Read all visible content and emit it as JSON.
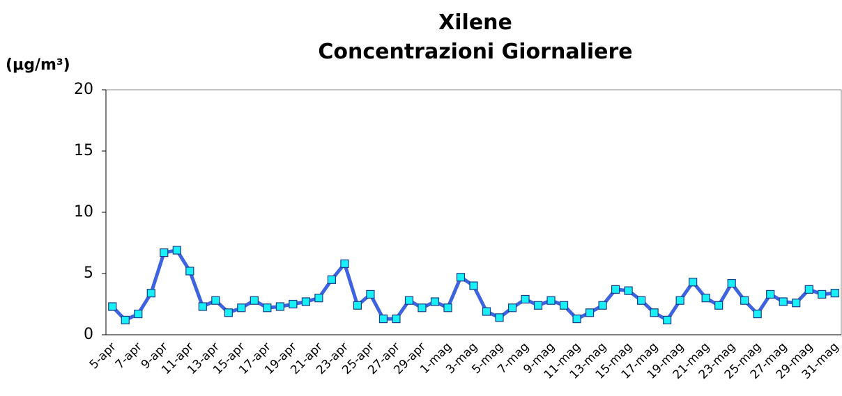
{
  "chart_data": {
    "type": "line",
    "title": [
      "Xilene",
      "Concentrazioni Giornaliere"
    ],
    "y_label": "(μg/m³)",
    "categories": [
      "5-apr",
      null,
      "7-apr",
      null,
      "9-apr",
      null,
      "11-apr",
      null,
      "13-apr",
      null,
      "15-apr",
      null,
      "17-apr",
      null,
      "19-apr",
      null,
      "21-apr",
      null,
      "23-apr",
      null,
      "25-apr",
      null,
      "27-apr",
      null,
      "29-apr",
      null,
      "1-mag",
      null,
      "3-mag",
      null,
      "5-mag",
      null,
      "7-mag",
      null,
      "9-mag",
      null,
      "11-mag",
      null,
      "13-mag",
      null,
      "15-mag",
      null,
      "17-mag",
      null,
      "19-mag",
      null,
      "21-mag",
      null,
      "23-mag",
      null,
      "25-mag",
      null,
      "27-mag",
      null,
      "29-mag",
      null,
      "31-mag"
    ],
    "series": [
      {
        "name": "Xilene",
        "color": "#3d63e0",
        "marker_color": "#19f0f5",
        "values": [
          2.3,
          1.2,
          1.7,
          3.4,
          6.7,
          6.9,
          5.2,
          2.3,
          2.8,
          1.8,
          2.2,
          2.8,
          2.2,
          2.3,
          2.5,
          2.7,
          3.0,
          4.5,
          5.8,
          2.4,
          3.3,
          1.3,
          1.3,
          2.8,
          2.2,
          2.7,
          2.2,
          4.7,
          4.0,
          1.9,
          1.4,
          2.2,
          2.9,
          2.4,
          2.8,
          2.4,
          1.3,
          1.8,
          2.4,
          3.7,
          3.6,
          2.8,
          1.8,
          1.2,
          2.8,
          4.3,
          3.0,
          2.4,
          4.2,
          2.8,
          1.7,
          3.3,
          2.7,
          2.6,
          3.7,
          3.3,
          3.4
        ]
      }
    ],
    "ylim": [
      0,
      20
    ],
    "yticks": [
      0,
      5,
      10,
      15,
      20
    ]
  }
}
